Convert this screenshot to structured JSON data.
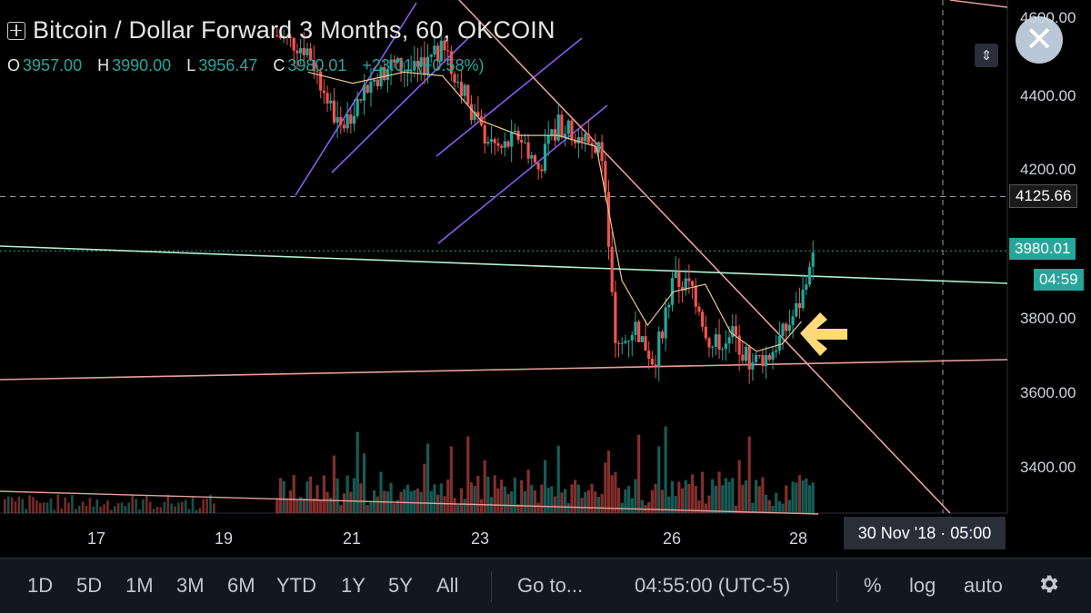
{
  "header": {
    "title": "Bitcoin / Dollar Forward 3 Months, 60, OKCOIN",
    "ohlc": [
      {
        "k": "O",
        "v": "3957.00"
      },
      {
        "k": "H",
        "v": "3990.00"
      },
      {
        "k": "L",
        "v": "3956.47"
      },
      {
        "k": "C",
        "v": "3980.01"
      }
    ],
    "change": "+23.01 (+0.58%)"
  },
  "price_axis": {
    "labels": [
      "4600.00",
      "4400.00",
      "4200.00",
      "3800.00",
      "3600.00",
      "3400.00"
    ],
    "crosshair_price": "4125.66",
    "last_price": "3980.01",
    "countdown": "04:59"
  },
  "time_axis": {
    "labels": [
      "17",
      "19",
      "21",
      "23",
      "26",
      "28"
    ],
    "crosshair_date": "30 Nov '18 · 05:00"
  },
  "toolbar": {
    "ranges": [
      "1D",
      "5D",
      "1M",
      "3M",
      "6M",
      "YTD",
      "1Y",
      "5Y",
      "All"
    ],
    "goto": "Go to...",
    "time": "04:55:00 (UTC-5)",
    "percent": "%",
    "log": "log",
    "auto": "auto"
  },
  "colors": {
    "up": "#26a69a",
    "down": "#ef5350",
    "ma": "#e8c88a",
    "channel": "#8b5cf6",
    "trend": "#e8a09a",
    "support_green": "#b2f2d0",
    "arrow": "#ffd97a"
  },
  "icons": [
    "chart-symbol-icon",
    "close-icon",
    "scale-arrows-icon",
    "arrow-left-icon",
    "gear-icon"
  ],
  "chart_data": {
    "type": "candlestick",
    "ylim": [
      3250,
      4650
    ],
    "x_axis_days": [
      17,
      19,
      21,
      23,
      26,
      28
    ],
    "series": [
      {
        "name": "price_path",
        "x": [
          19.8,
          20.3,
          20.8,
          21.2,
          21.6,
          22.0,
          22.4,
          22.7,
          23.0,
          23.3,
          23.6,
          23.9,
          24.2,
          24.6,
          24.9,
          25.1,
          25.4,
          25.7,
          26.0,
          26.3,
          26.6,
          26.9,
          27.2,
          27.5,
          27.8,
          28.0,
          28.2
        ],
        "y": [
          4560,
          4520,
          4300,
          4420,
          4480,
          4460,
          4520,
          4420,
          4300,
          4250,
          4290,
          4200,
          4320,
          4280,
          4250,
          3700,
          3780,
          3680,
          3900,
          3880,
          3720,
          3760,
          3680,
          3700,
          3780,
          3850,
          3980
        ]
      }
    ],
    "ma_line": {
      "x": [
        20.3,
        21.0,
        21.8,
        22.4,
        23.0,
        23.6,
        24.2,
        24.8,
        25.2,
        25.6,
        26.0,
        26.5,
        26.9,
        27.3,
        27.7,
        28.0
      ],
      "y": [
        4460,
        4430,
        4460,
        4450,
        4330,
        4290,
        4290,
        4260,
        3900,
        3780,
        3870,
        3890,
        3760,
        3710,
        3730,
        3790
      ]
    },
    "volume_max": 1
  }
}
